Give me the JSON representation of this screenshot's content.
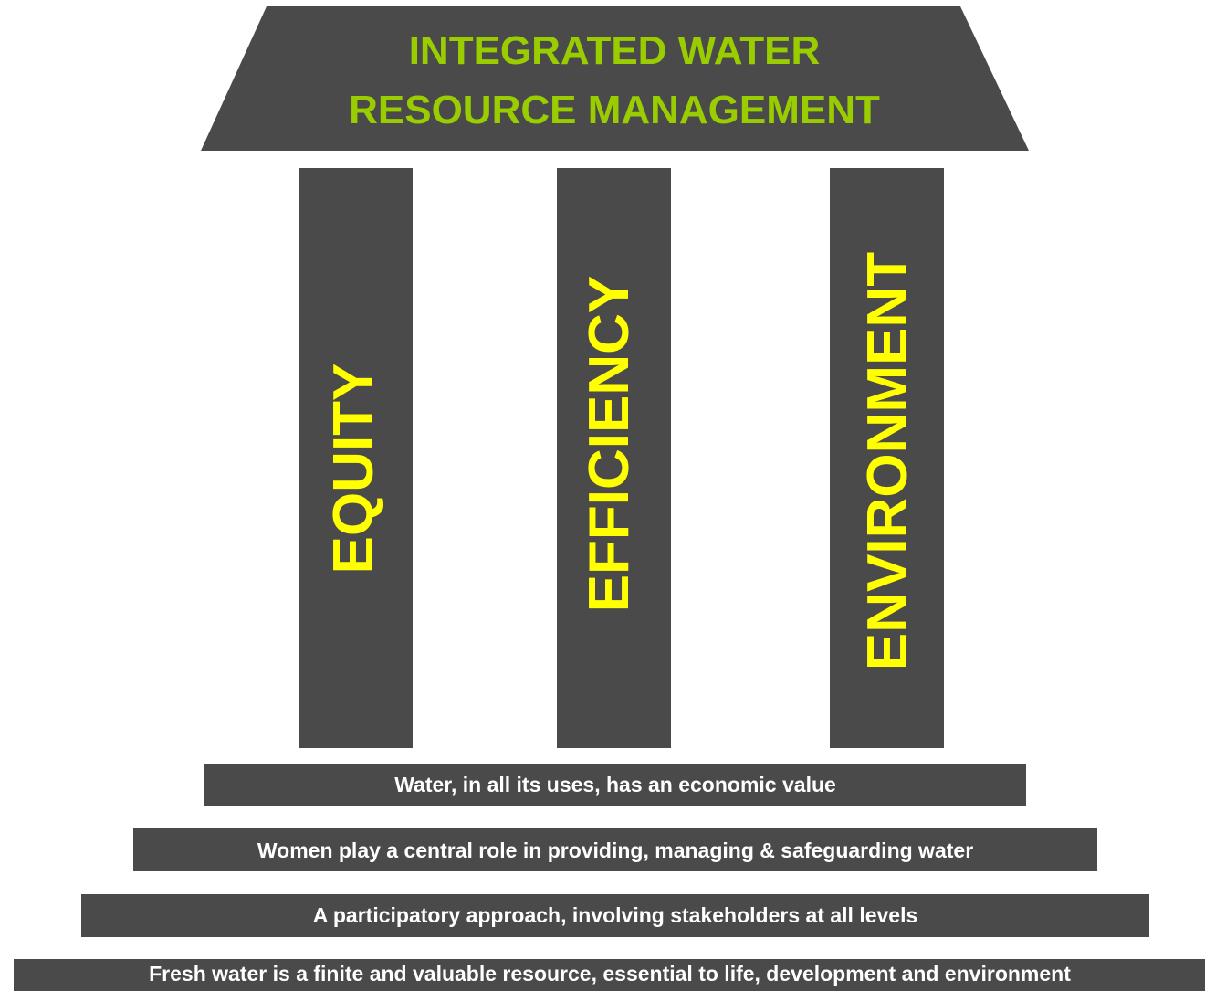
{
  "roof": {
    "lines": [
      "INTEGRATED WATER",
      "RESOURCE MANAGEMENT"
    ]
  },
  "pillars": [
    "EQUITY",
    "EFFICIENCY",
    "ENVIRONMENT"
  ],
  "steps": [
    "Water, in all its uses, has an economic value",
    "Women play a central role in providing, managing & safeguarding water",
    "A participatory approach, involving stakeholders at all levels",
    "Fresh water is a finite and valuable resource, essential to life, development and environment"
  ]
}
